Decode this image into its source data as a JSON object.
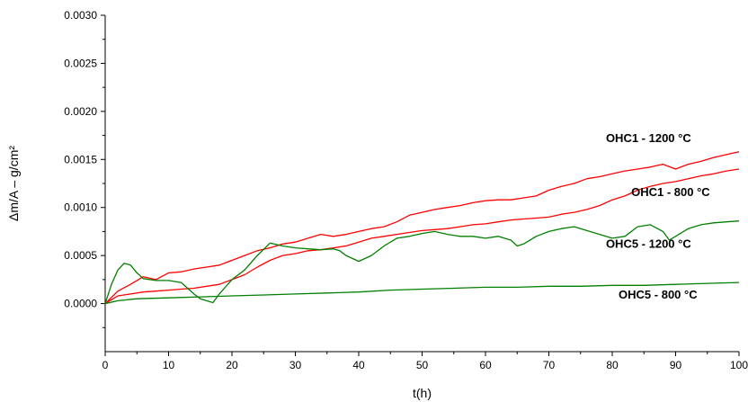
{
  "chart_data": {
    "type": "line",
    "xlabel": "t(h)",
    "ylabel": "Δm/A – g/cm²",
    "xlim": [
      0,
      100
    ],
    "ylim": [
      -0.0005,
      0.003
    ],
    "x_ticks": [
      "0",
      "10",
      "20",
      "30",
      "40",
      "50",
      "60",
      "70",
      "80",
      "90",
      "100"
    ],
    "y_ticks": [
      "0.0000",
      "0.0005",
      "0.0010",
      "0.0015",
      "0.0020",
      "0.0025",
      "0.0030"
    ],
    "grid": false,
    "series": [
      {
        "name": "OHC1 - 1200 °C",
        "color": "#ff0000",
        "x": [
          0,
          2,
          4,
          6,
          8,
          10,
          12,
          14,
          16,
          18,
          20,
          22,
          24,
          26,
          28,
          30,
          32,
          34,
          36,
          38,
          40,
          42,
          44,
          46,
          48,
          50,
          52,
          54,
          56,
          58,
          60,
          62,
          64,
          66,
          68,
          70,
          72,
          74,
          76,
          78,
          80,
          82,
          84,
          86,
          88,
          90,
          92,
          94,
          96,
          98,
          100
        ],
        "y": [
          0.0,
          0.00013,
          0.0002,
          0.00028,
          0.00025,
          0.00032,
          0.00033,
          0.00036,
          0.00038,
          0.0004,
          0.00045,
          0.0005,
          0.00055,
          0.00058,
          0.00062,
          0.00064,
          0.00068,
          0.00072,
          0.0007,
          0.00072,
          0.00075,
          0.00078,
          0.0008,
          0.00085,
          0.00092,
          0.00095,
          0.00098,
          0.001,
          0.00102,
          0.00105,
          0.00107,
          0.00108,
          0.00108,
          0.0011,
          0.00112,
          0.00118,
          0.00122,
          0.00125,
          0.0013,
          0.00132,
          0.00135,
          0.00138,
          0.0014,
          0.00142,
          0.00145,
          0.0014,
          0.00145,
          0.00148,
          0.00152,
          0.00155,
          0.00158
        ]
      },
      {
        "name": "OHC1 - 800 °C",
        "color": "#ff0000",
        "x": [
          0,
          2,
          4,
          6,
          8,
          10,
          12,
          14,
          16,
          18,
          20,
          22,
          24,
          26,
          28,
          30,
          32,
          34,
          36,
          38,
          40,
          42,
          44,
          46,
          48,
          50,
          52,
          54,
          56,
          58,
          60,
          62,
          64,
          66,
          68,
          70,
          72,
          74,
          76,
          78,
          80,
          82,
          84,
          86,
          88,
          90,
          92,
          94,
          96,
          98,
          100
        ],
        "y": [
          0.0,
          8e-05,
          0.0001,
          0.00012,
          0.00013,
          0.00014,
          0.00015,
          0.00016,
          0.00018,
          0.0002,
          0.00025,
          0.0003,
          0.00038,
          0.00045,
          0.0005,
          0.00052,
          0.00055,
          0.00056,
          0.00058,
          0.0006,
          0.00064,
          0.00068,
          0.0007,
          0.00072,
          0.00074,
          0.00076,
          0.00077,
          0.00078,
          0.0008,
          0.00082,
          0.00083,
          0.00085,
          0.00087,
          0.00088,
          0.00089,
          0.0009,
          0.00093,
          0.00095,
          0.00098,
          0.00102,
          0.00108,
          0.00112,
          0.00118,
          0.00122,
          0.00125,
          0.00127,
          0.0013,
          0.00133,
          0.00135,
          0.00138,
          0.0014
        ]
      },
      {
        "name": "OHC5 - 1200 °C",
        "color": "#008000",
        "x": [
          0,
          1,
          2,
          3,
          4,
          5,
          6,
          8,
          10,
          12,
          14,
          15,
          16,
          17,
          18,
          20,
          22,
          24,
          26,
          28,
          30,
          32,
          34,
          36,
          37,
          38,
          40,
          42,
          44,
          46,
          48,
          50,
          52,
          54,
          56,
          58,
          60,
          62,
          64,
          65,
          66,
          68,
          70,
          72,
          74,
          76,
          78,
          80,
          82,
          84,
          86,
          88,
          89,
          90,
          92,
          94,
          96,
          98,
          100
        ],
        "y": [
          0.0,
          0.0002,
          0.00035,
          0.00042,
          0.0004,
          0.00032,
          0.00026,
          0.00024,
          0.00024,
          0.00022,
          0.0001,
          5e-05,
          3e-05,
          1e-05,
          0.0001,
          0.00025,
          0.00035,
          0.0005,
          0.00063,
          0.0006,
          0.00058,
          0.00057,
          0.00056,
          0.00057,
          0.00055,
          0.0005,
          0.00044,
          0.0005,
          0.0006,
          0.00068,
          0.0007,
          0.00073,
          0.00075,
          0.00072,
          0.0007,
          0.0007,
          0.00068,
          0.0007,
          0.00066,
          0.0006,
          0.00062,
          0.0007,
          0.00075,
          0.00078,
          0.0008,
          0.00076,
          0.00072,
          0.00068,
          0.0007,
          0.0008,
          0.00082,
          0.00075,
          0.00066,
          0.0007,
          0.00078,
          0.00082,
          0.00084,
          0.00085,
          0.00086
        ]
      },
      {
        "name": "OHC5 - 800 °C",
        "color": "#008000",
        "x": [
          0,
          2,
          5,
          10,
          15,
          20,
          25,
          30,
          35,
          40,
          45,
          50,
          55,
          60,
          65,
          70,
          75,
          80,
          85,
          90,
          95,
          100
        ],
        "y": [
          0.0,
          3e-05,
          5e-05,
          6e-05,
          7e-05,
          8e-05,
          9e-05,
          0.0001,
          0.00011,
          0.00012,
          0.00014,
          0.00015,
          0.00016,
          0.00017,
          0.00017,
          0.00018,
          0.00018,
          0.00019,
          0.00019,
          0.0002,
          0.00021,
          0.00022
        ]
      }
    ],
    "annotations": [
      {
        "text": "OHC1 - 1200 °C",
        "x": 79,
        "y": 0.00168
      },
      {
        "text": "OHC1 - 800 °C",
        "x": 83,
        "y": 0.00112
      },
      {
        "text": "OHC5 - 1200 °C",
        "x": 79,
        "y": 0.00058
      },
      {
        "text": "OHC5 - 800 °C",
        "x": 81,
        "y": 5e-05
      }
    ]
  }
}
